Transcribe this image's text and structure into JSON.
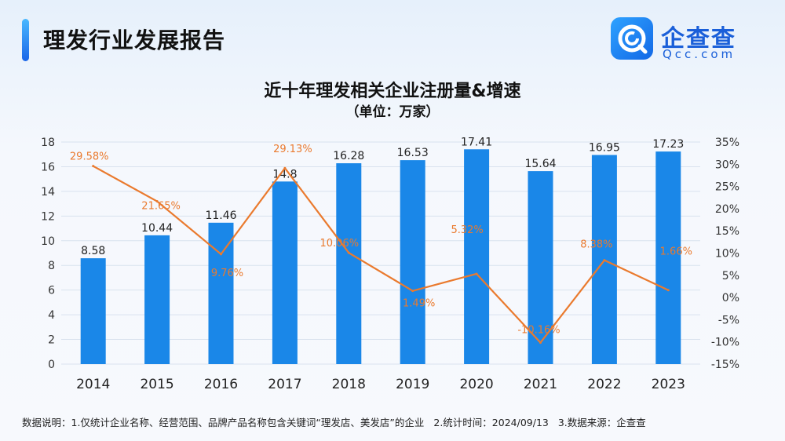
{
  "header": {
    "title": "理发行业发展报告",
    "logo": {
      "name": "企查查",
      "url": "Qcc.com",
      "icon": "qcc-logo-icon",
      "brand_color": "#1a5fd9"
    }
  },
  "chart_data": {
    "type": "bar+line",
    "title": "近十年理发相关企业注册量&增速",
    "subtitle": "（单位：万家）",
    "categories": [
      "2014",
      "2015",
      "2016",
      "2017",
      "2018",
      "2019",
      "2020",
      "2021",
      "2022",
      "2023"
    ],
    "series": [
      {
        "name": "注册量",
        "type": "bar",
        "axis": "left",
        "color": "#1a87e8",
        "values": [
          8.58,
          10.44,
          11.46,
          14.8,
          16.28,
          16.53,
          17.41,
          15.64,
          16.95,
          17.23
        ],
        "labels": [
          "8.58",
          "10.44",
          "11.46",
          "14.8",
          "16.28",
          "16.53",
          "17.41",
          "15.64",
          "16.95",
          "17.23"
        ]
      },
      {
        "name": "增速",
        "type": "line",
        "axis": "right",
        "color": "#ea7a2e",
        "values": [
          29.58,
          21.65,
          9.76,
          29.13,
          10.06,
          1.49,
          5.32,
          -10.16,
          8.38,
          1.66
        ],
        "labels": [
          "29.58%",
          "21.65%",
          "9.76%",
          "29.13%",
          "10.06%",
          "1.49%",
          "5.32%",
          "-10.16%",
          "8.38%",
          "1.66%"
        ]
      }
    ],
    "y_left": {
      "min": 0,
      "max": 18,
      "ticks": [
        "0",
        "2",
        "4",
        "6",
        "8",
        "10",
        "12",
        "14",
        "16",
        "18"
      ]
    },
    "y_right": {
      "min": -15,
      "max": 35,
      "ticks": [
        "-15%",
        "-10%",
        "-5%",
        "0%",
        "5%",
        "10%",
        "15%",
        "20%",
        "25%",
        "30%",
        "35%"
      ]
    },
    "grid": true
  },
  "footnote": {
    "items": [
      "数据说明：1.仅统计企业名称、经营范围、品牌产品名称包含关键词“理发店、美发店”的企业",
      "2.统计时间：2024/09/13",
      "3.数据来源：企查查"
    ]
  }
}
